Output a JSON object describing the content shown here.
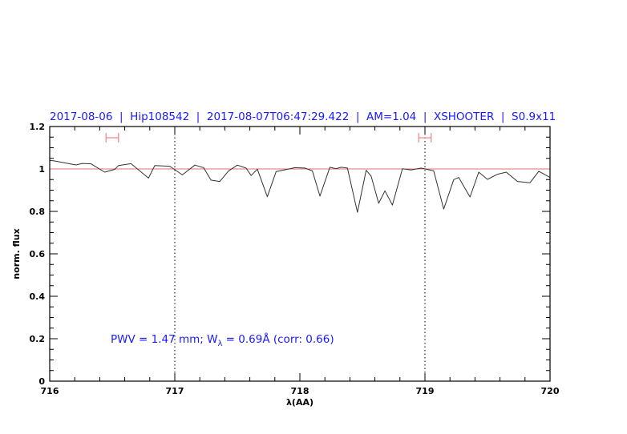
{
  "chart_data": {
    "type": "line",
    "title": "2017-08-06  |  Hip108542  |  2017-08-07T06:47:29.422  |  AM=1.04  |  XSHOOTER  |  S0.9x11",
    "xlabel": "λ(AA)",
    "ylabel": "norm. flux",
    "xlim": [
      716,
      720
    ],
    "ylim": [
      0,
      1.2
    ],
    "x_ticks": [
      "716",
      "717",
      "718",
      "719",
      "720"
    ],
    "y_ticks": [
      "0",
      "0.2",
      "0.4",
      "0.6",
      "0.8",
      "1",
      "1.2"
    ],
    "grid": false,
    "reference_line": {
      "y": 1.0,
      "color": "#e07070"
    },
    "vertical_markers": [
      717,
      719
    ],
    "range_markers": [
      {
        "x": [
          716.45,
          716.55
        ],
        "y": 1.147,
        "color": "#f08080"
      },
      {
        "x": [
          718.95,
          719.05
        ],
        "y": 1.147,
        "color": "#f08080"
      }
    ],
    "annotation": {
      "text": "PWV = 1.47 mm; W",
      "sub": "λ",
      "rest": " = 0.69Å (corr: 0.66)"
    },
    "series": [
      {
        "color": "#333333",
        "x": [
          716.0,
          716.03,
          716.21,
          716.26,
          716.33,
          716.44,
          716.52,
          716.55,
          716.65,
          716.79,
          716.84,
          716.96,
          717.06,
          717.16,
          717.23,
          717.29,
          717.36,
          717.43,
          717.5,
          717.57,
          717.61,
          717.66,
          717.74,
          717.81,
          717.89,
          717.96,
          718.04,
          718.1,
          718.16,
          718.24,
          718.29,
          718.33,
          718.38,
          718.46,
          718.53,
          718.57,
          718.63,
          718.68,
          718.74,
          718.82,
          718.89,
          718.97,
          719.07,
          719.15,
          719.23,
          719.27,
          719.36,
          719.43,
          719.5,
          719.58,
          719.65,
          719.74,
          719.84,
          719.91,
          720.0
        ],
        "y": [
          1.04,
          1.039,
          1.019,
          1.026,
          1.024,
          0.985,
          0.998,
          1.016,
          1.025,
          0.957,
          1.016,
          1.013,
          0.972,
          1.018,
          1.006,
          0.947,
          0.941,
          0.991,
          1.018,
          1.004,
          0.969,
          0.999,
          0.869,
          0.988,
          0.997,
          1.006,
          1.004,
          0.991,
          0.872,
          1.008,
          1.001,
          1.008,
          1.004,
          0.796,
          0.994,
          0.966,
          0.838,
          0.897,
          0.83,
          1.001,
          0.995,
          1.004,
          0.991,
          0.811,
          0.95,
          0.96,
          0.868,
          0.985,
          0.951,
          0.975,
          0.985,
          0.941,
          0.935,
          0.989,
          0.96
        ]
      }
    ]
  }
}
